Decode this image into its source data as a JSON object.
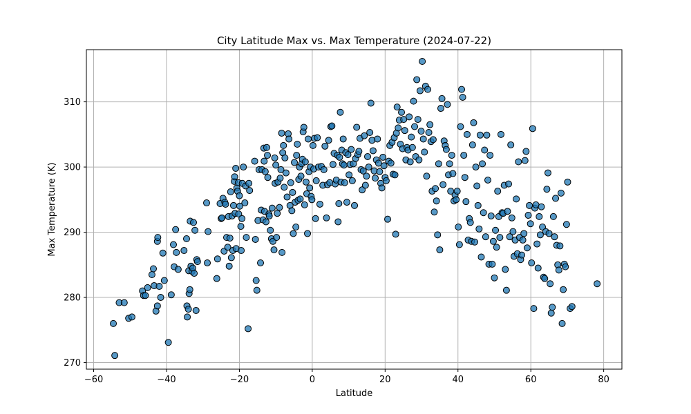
{
  "chart_data": {
    "type": "scatter",
    "title": "City Latitude Max vs. Max Temperature (2024-07-22)",
    "xlabel": "Latitude",
    "ylabel": "Max Temperature (K)",
    "xlim": [
      -62,
      85
    ],
    "ylim": [
      269,
      318
    ],
    "xticks": [
      -60,
      -40,
      -20,
      0,
      20,
      40,
      60,
      80
    ],
    "xtick_labels": [
      "−60",
      "−40",
      "−20",
      "0",
      "20",
      "40",
      "60",
      "80"
    ],
    "yticks": [
      270,
      280,
      290,
      300,
      310
    ],
    "ytick_labels": [
      "270",
      "280",
      "290",
      "300",
      "310"
    ],
    "grid": true,
    "marker_color": "#1f77b4",
    "points": [
      [
        -54.6,
        276.0
      ],
      [
        -54.2,
        271.1
      ],
      [
        -53.0,
        279.2
      ],
      [
        -51.6,
        279.2
      ],
      [
        -50.4,
        276.8
      ],
      [
        -49.5,
        277.0
      ],
      [
        -46.6,
        281.0
      ],
      [
        -46.3,
        280.3
      ],
      [
        -45.8,
        280.3
      ],
      [
        -45.2,
        281.5
      ],
      [
        -44.0,
        283.5
      ],
      [
        -43.6,
        284.4
      ],
      [
        -43.4,
        281.8
      ],
      [
        -42.9,
        277.9
      ],
      [
        -42.5,
        278.7
      ],
      [
        -42.5,
        288.6
      ],
      [
        -42.4,
        289.2
      ],
      [
        -42.0,
        281.7
      ],
      [
        -41.6,
        280.0
      ],
      [
        -41.0,
        286.8
      ],
      [
        -40.6,
        282.6
      ],
      [
        -39.5,
        273.1
      ],
      [
        -38.7,
        280.4
      ],
      [
        -38.1,
        288.1
      ],
      [
        -37.9,
        284.7
      ],
      [
        -37.5,
        290.4
      ],
      [
        -37.3,
        286.9
      ],
      [
        -36.8,
        284.3
      ],
      [
        -35.2,
        287.2
      ],
      [
        -34.5,
        289.0
      ],
      [
        -34.4,
        278.7
      ],
      [
        -34.3,
        277.0
      ],
      [
        -34.0,
        278.2
      ],
      [
        -33.9,
        284.1
      ],
      [
        -33.8,
        280.6
      ],
      [
        -33.6,
        281.2
      ],
      [
        -33.5,
        291.7
      ],
      [
        -33.3,
        284.8
      ],
      [
        -33.0,
        284.0
      ],
      [
        -32.8,
        284.5
      ],
      [
        -32.6,
        291.5
      ],
      [
        -32.4,
        283.7
      ],
      [
        -32.2,
        290.3
      ],
      [
        -31.9,
        278.0
      ],
      [
        -31.7,
        285.8
      ],
      [
        -31.5,
        285.5
      ],
      [
        -29.0,
        294.5
      ],
      [
        -28.8,
        285.3
      ],
      [
        -28.6,
        290.1
      ],
      [
        -26.2,
        282.9
      ],
      [
        -26.0,
        285.9
      ],
      [
        -25.3,
        294.4
      ],
      [
        -25.0,
        292.1
      ],
      [
        -24.8,
        292.2
      ],
      [
        -24.5,
        295.2
      ],
      [
        -24.2,
        287.1
      ],
      [
        -24.0,
        294.6
      ],
      [
        -23.8,
        294.3
      ],
      [
        -23.5,
        289.2
      ],
      [
        -23.2,
        287.7
      ],
      [
        -23.0,
        292.4
      ],
      [
        -22.8,
        284.8
      ],
      [
        -22.6,
        289.1
      ],
      [
        -22.4,
        296.2
      ],
      [
        -22.2,
        286.1
      ],
      [
        -22.0,
        292.5
      ],
      [
        -21.8,
        287.2
      ],
      [
        -21.6,
        294.1
      ],
      [
        -21.4,
        297.8
      ],
      [
        -21.3,
        298.5
      ],
      [
        -21.2,
        292.9
      ],
      [
        -21.0,
        299.8
      ],
      [
        -20.9,
        287.5
      ],
      [
        -20.7,
        296.8
      ],
      [
        -20.5,
        296.3
      ],
      [
        -20.3,
        297.6
      ],
      [
        -20.2,
        292.8
      ],
      [
        -20.0,
        295.6
      ],
      [
        -19.9,
        294.0
      ],
      [
        -19.6,
        290.9
      ],
      [
        -19.5,
        287.2
      ],
      [
        -19.3,
        292.1
      ],
      [
        -19.2,
        297.5
      ],
      [
        -18.9,
        300.0
      ],
      [
        -18.5,
        294.5
      ],
      [
        -18.3,
        297.1
      ],
      [
        -18.1,
        289.2
      ],
      [
        -17.6,
        275.2
      ],
      [
        -17.4,
        297.5
      ],
      [
        -17.2,
        296.4
      ],
      [
        -15.8,
        300.9
      ],
      [
        -15.6,
        288.9
      ],
      [
        -15.4,
        282.6
      ],
      [
        -15.2,
        281.1
      ],
      [
        -14.9,
        291.8
      ],
      [
        -14.6,
        299.6
      ],
      [
        -14.2,
        285.3
      ],
      [
        -14.0,
        293.4
      ],
      [
        -13.8,
        299.6
      ],
      [
        -13.5,
        291.9
      ],
      [
        -13.3,
        302.9
      ],
      [
        -13.2,
        300.9
      ],
      [
        -13.1,
        293.2
      ],
      [
        -12.9,
        299.3
      ],
      [
        -12.7,
        291.6
      ],
      [
        -12.5,
        303.0
      ],
      [
        -12.3,
        301.8
      ],
      [
        -12.2,
        298.4
      ],
      [
        -11.9,
        292.8
      ],
      [
        -11.8,
        292.5
      ],
      [
        -11.5,
        290.3
      ],
      [
        -11.2,
        289.0
      ],
      [
        -11.0,
        293.7
      ],
      [
        -10.8,
        288.6
      ],
      [
        -10.5,
        287.3
      ],
      [
        -10.3,
        301.4
      ],
      [
        -10.2,
        297.5
      ],
      [
        -10.0,
        300.3
      ],
      [
        -9.8,
        289.2
      ],
      [
        -9.6,
        292.9
      ],
      [
        -9.4,
        297.7
      ],
      [
        -9.0,
        293.8
      ],
      [
        -8.8,
        298.3
      ],
      [
        -8.6,
        299.6
      ],
      [
        -8.4,
        305.2
      ],
      [
        -8.3,
        286.9
      ],
      [
        -8.1,
        302.2
      ],
      [
        -7.9,
        303.3
      ],
      [
        -7.7,
        296.9
      ],
      [
        -7.5,
        301.4
      ],
      [
        -7.2,
        299.1
      ],
      [
        -6.9,
        295.4
      ],
      [
        -6.6,
        305.1
      ],
      [
        -6.4,
        304.3
      ],
      [
        -6.1,
        294.1
      ],
      [
        -5.9,
        297.6
      ],
      [
        -5.6,
        293.3
      ],
      [
        -5.4,
        296.1
      ],
      [
        -5.2,
        289.8
      ],
      [
        -4.9,
        300.7
      ],
      [
        -4.7,
        294.6
      ],
      [
        -4.5,
        290.8
      ],
      [
        -4.3,
        301.8
      ],
      [
        -4.1,
        303.5
      ],
      [
        -3.9,
        294.9
      ],
      [
        -3.7,
        298.1
      ],
      [
        -3.5,
        300.0
      ],
      [
        -3.3,
        295.1
      ],
      [
        -3.1,
        298.6
      ],
      [
        -2.9,
        300.5
      ],
      [
        -2.7,
        301.2
      ],
      [
        -2.5,
        305.4
      ],
      [
        -2.3,
        306.1
      ],
      [
        -2.1,
        294.2
      ],
      [
        -1.9,
        300.8
      ],
      [
        -1.7,
        297.7
      ],
      [
        -1.5,
        295.9
      ],
      [
        -1.3,
        289.8
      ],
      [
        -1.1,
        304.3
      ],
      [
        -0.9,
        299.3
      ],
      [
        -0.7,
        296.8
      ],
      [
        -0.5,
        300.0
      ],
      [
        -0.3,
        295.5
      ],
      [
        -0.1,
        295.0
      ],
      [
        0.2,
        303.3
      ],
      [
        0.4,
        299.7
      ],
      [
        0.6,
        304.4
      ],
      [
        0.9,
        292.1
      ],
      [
        1.1,
        297.9
      ],
      [
        1.4,
        304.5
      ],
      [
        1.7,
        300.0
      ],
      [
        2.1,
        294.3
      ],
      [
        2.5,
        300.1
      ],
      [
        2.9,
        297.2
      ],
      [
        3.2,
        299.6
      ],
      [
        3.5,
        303.2
      ],
      [
        3.9,
        292.2
      ],
      [
        4.2,
        297.3
      ],
      [
        4.5,
        304.1
      ],
      [
        4.8,
        297.6
      ],
      [
        5.1,
        306.2
      ],
      [
        5.4,
        306.3
      ],
      [
        5.7,
        300.4
      ],
      [
        6.0,
        302.1
      ],
      [
        6.3,
        297.4
      ],
      [
        6.6,
        298.0
      ],
      [
        6.9,
        301.8
      ],
      [
        7.1,
        291.6
      ],
      [
        7.3,
        294.4
      ],
      [
        7.5,
        301.5
      ],
      [
        7.7,
        308.4
      ],
      [
        7.9,
        297.7
      ],
      [
        8.1,
        302.6
      ],
      [
        8.3,
        300.5
      ],
      [
        8.5,
        304.3
      ],
      [
        8.7,
        300.3
      ],
      [
        8.9,
        297.6
      ],
      [
        9.2,
        302.2
      ],
      [
        9.5,
        294.6
      ],
      [
        9.8,
        301.9
      ],
      [
        10.1,
        298.8
      ],
      [
        10.4,
        300.4
      ],
      [
        10.7,
        302.7
      ],
      [
        11.0,
        297.9
      ],
      [
        11.3,
        300.5
      ],
      [
        11.6,
        294.1
      ],
      [
        11.9,
        301.3
      ],
      [
        12.2,
        306.1
      ],
      [
        12.5,
        301.9
      ],
      [
        12.8,
        302.4
      ],
      [
        13.1,
        304.4
      ],
      [
        13.4,
        299.6
      ],
      [
        13.7,
        296.5
      ],
      [
        14.0,
        299.4
      ],
      [
        14.3,
        304.8
      ],
      [
        14.6,
        297.2
      ],
      [
        14.9,
        298.6
      ],
      [
        15.2,
        301.6
      ],
      [
        15.5,
        300.0
      ],
      [
        15.8,
        305.3
      ],
      [
        16.1,
        309.8
      ],
      [
        16.4,
        304.1
      ],
      [
        16.7,
        302.5
      ],
      [
        17.0,
        299.4
      ],
      [
        17.3,
        298.3
      ],
      [
        17.6,
        301.1
      ],
      [
        17.9,
        304.3
      ],
      [
        18.2,
        300.6
      ],
      [
        18.5,
        299.3
      ],
      [
        18.8,
        297.5
      ],
      [
        19.1,
        296.8
      ],
      [
        19.4,
        301.5
      ],
      [
        19.7,
        300.2
      ],
      [
        20.0,
        298.4
      ],
      [
        20.3,
        297.9
      ],
      [
        20.7,
        292.0
      ],
      [
        21.0,
        300.9
      ],
      [
        21.3,
        303.3
      ],
      [
        21.6,
        300.6
      ],
      [
        21.9,
        303.8
      ],
      [
        22.2,
        298.9
      ],
      [
        22.5,
        304.5
      ],
      [
        22.7,
        298.8
      ],
      [
        22.9,
        289.7
      ],
      [
        23.1,
        305.2
      ],
      [
        23.3,
        309.2
      ],
      [
        23.6,
        306.0
      ],
      [
        23.9,
        307.2
      ],
      [
        24.2,
        303.5
      ],
      [
        24.5,
        308.4
      ],
      [
        24.8,
        302.8
      ],
      [
        25.1,
        307.3
      ],
      [
        25.4,
        305.6
      ],
      [
        25.7,
        301.1
      ],
      [
        26.0,
        303.0
      ],
      [
        26.3,
        302.6
      ],
      [
        26.6,
        307.7
      ],
      [
        26.9,
        300.8
      ],
      [
        27.2,
        304.6
      ],
      [
        27.5,
        303.0
      ],
      [
        27.8,
        310.1
      ],
      [
        28.1,
        306.2
      ],
      [
        28.4,
        301.6
      ],
      [
        28.7,
        313.4
      ],
      [
        29.0,
        307.3
      ],
      [
        29.3,
        301.1
      ],
      [
        29.6,
        311.7
      ],
      [
        29.9,
        305.5
      ],
      [
        30.2,
        316.2
      ],
      [
        30.5,
        304.3
      ],
      [
        30.8,
        302.3
      ],
      [
        31.1,
        312.4
      ],
      [
        31.4,
        298.6
      ],
      [
        31.7,
        311.9
      ],
      [
        32.0,
        305.3
      ],
      [
        32.3,
        306.5
      ],
      [
        32.6,
        303.9
      ],
      [
        32.9,
        296.3
      ],
      [
        33.2,
        304.2
      ],
      [
        33.5,
        293.1
      ],
      [
        33.8,
        296.7
      ],
      [
        34.1,
        294.8
      ],
      [
        34.4,
        289.6
      ],
      [
        34.7,
        300.5
      ],
      [
        35.0,
        287.3
      ],
      [
        35.3,
        309.0
      ],
      [
        35.6,
        310.5
      ],
      [
        35.9,
        297.3
      ],
      [
        36.2,
        304.0
      ],
      [
        36.5,
        303.3
      ],
      [
        36.8,
        302.7
      ],
      [
        37.1,
        309.6
      ],
      [
        37.4,
        298.8
      ],
      [
        37.7,
        300.5
      ],
      [
        38.0,
        296.3
      ],
      [
        38.3,
        301.8
      ],
      [
        38.6,
        299.0
      ],
      [
        38.9,
        294.8
      ],
      [
        39.2,
        295.7
      ],
      [
        39.5,
        295.0
      ],
      [
        39.8,
        296.3
      ],
      [
        40.1,
        290.8
      ],
      [
        40.4,
        288.1
      ],
      [
        40.7,
        306.2
      ],
      [
        41.0,
        311.9
      ],
      [
        41.3,
        310.7
      ],
      [
        41.6,
        301.8
      ],
      [
        41.9,
        298.4
      ],
      [
        42.2,
        294.7
      ],
      [
        42.5,
        305.0
      ],
      [
        42.8,
        288.8
      ],
      [
        43.1,
        292.1
      ],
      [
        43.4,
        291.5
      ],
      [
        43.7,
        288.6
      ],
      [
        44.0,
        303.4
      ],
      [
        44.3,
        306.8
      ],
      [
        44.6,
        288.5
      ],
      [
        44.9,
        300.0
      ],
      [
        45.2,
        297.1
      ],
      [
        45.5,
        294.1
      ],
      [
        45.8,
        290.5
      ],
      [
        46.1,
        304.9
      ],
      [
        46.4,
        286.2
      ],
      [
        46.7,
        300.5
      ],
      [
        47.0,
        293.0
      ],
      [
        47.3,
        302.6
      ],
      [
        47.6,
        289.3
      ],
      [
        47.9,
        304.9
      ],
      [
        48.2,
        298.0
      ],
      [
        48.5,
        285.1
      ],
      [
        48.8,
        301.8
      ],
      [
        49.1,
        292.5
      ],
      [
        49.4,
        285.1
      ],
      [
        49.7,
        288.6
      ],
      [
        50.0,
        283.0
      ],
      [
        50.3,
        290.3
      ],
      [
        50.6,
        287.7
      ],
      [
        50.9,
        296.3
      ],
      [
        51.2,
        292.4
      ],
      [
        51.5,
        289.2
      ],
      [
        51.8,
        305.0
      ],
      [
        52.1,
        293.0
      ],
      [
        52.4,
        292.9
      ],
      [
        52.7,
        297.2
      ],
      [
        53.0,
        284.3
      ],
      [
        53.3,
        281.1
      ],
      [
        53.6,
        293.2
      ],
      [
        53.9,
        297.4
      ],
      [
        54.2,
        289.3
      ],
      [
        54.5,
        303.4
      ],
      [
        54.8,
        292.2
      ],
      [
        55.1,
        290.1
      ],
      [
        55.4,
        286.3
      ],
      [
        55.7,
        288.8
      ],
      [
        56.0,
        295.1
      ],
      [
        56.3,
        286.7
      ],
      [
        56.6,
        300.8
      ],
      [
        56.9,
        289.2
      ],
      [
        57.2,
        285.8
      ],
      [
        57.5,
        286.5
      ],
      [
        57.8,
        288.8
      ],
      [
        58.1,
        289.8
      ],
      [
        58.4,
        301.0
      ],
      [
        58.7,
        302.4
      ],
      [
        59.0,
        287.6
      ],
      [
        59.3,
        292.6
      ],
      [
        59.6,
        294.1
      ],
      [
        59.9,
        291.3
      ],
      [
        60.2,
        285.3
      ],
      [
        60.5,
        305.9
      ],
      [
        60.8,
        278.3
      ],
      [
        61.1,
        293.7
      ],
      [
        61.4,
        294.2
      ],
      [
        61.7,
        288.2
      ],
      [
        62.0,
        284.5
      ],
      [
        62.3,
        292.4
      ],
      [
        62.6,
        289.6
      ],
      [
        62.9,
        293.9
      ],
      [
        63.2,
        290.8
      ],
      [
        63.5,
        283.1
      ],
      [
        63.8,
        282.9
      ],
      [
        64.1,
        290.1
      ],
      [
        64.4,
        296.6
      ],
      [
        64.7,
        299.1
      ],
      [
        65.0,
        289.8
      ],
      [
        65.3,
        282.1
      ],
      [
        65.6,
        277.6
      ],
      [
        65.9,
        278.5
      ],
      [
        66.2,
        292.4
      ],
      [
        66.5,
        289.3
      ],
      [
        66.8,
        295.2
      ],
      [
        67.1,
        288.0
      ],
      [
        67.4,
        285.0
      ],
      [
        67.7,
        284.2
      ],
      [
        68.0,
        287.9
      ],
      [
        68.3,
        296.0
      ],
      [
        68.6,
        276.0
      ],
      [
        68.9,
        281.2
      ],
      [
        69.2,
        285.1
      ],
      [
        69.5,
        284.7
      ],
      [
        69.8,
        291.2
      ],
      [
        70.1,
        297.7
      ],
      [
        70.8,
        278.3
      ],
      [
        71.3,
        278.6
      ],
      [
        78.2,
        282.1
      ]
    ]
  }
}
